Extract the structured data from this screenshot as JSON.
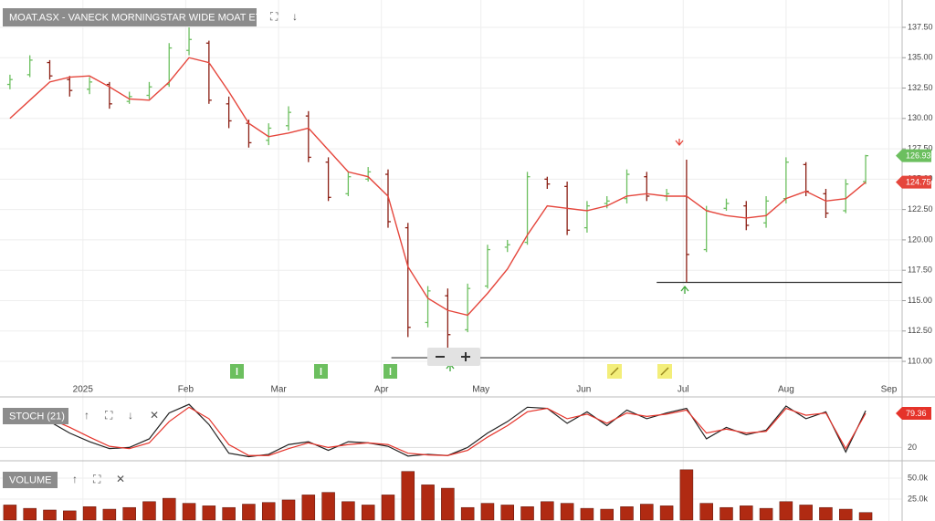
{
  "chart_data": [
    {
      "type": "ohlc",
      "title": "MOAT.ASX - VANECK MORNINGSTAR WIDE MOAT ETF",
      "x": [
        -22,
        -16,
        -10,
        -4,
        2,
        8,
        14,
        20,
        26,
        32,
        38,
        44,
        50,
        56,
        62,
        68,
        74,
        80,
        86,
        92,
        98,
        104,
        110,
        116,
        122,
        128,
        134,
        140,
        146,
        152,
        158,
        164,
        170,
        176,
        182,
        188,
        194,
        200,
        206,
        212,
        218,
        224,
        230,
        236
      ],
      "xlim": [
        -25,
        247
      ],
      "xticks": [
        {
          "value": 0,
          "label": "2025"
        },
        {
          "value": 31,
          "label": "Feb"
        },
        {
          "value": 59,
          "label": "Mar"
        },
        {
          "value": 90,
          "label": "Apr"
        },
        {
          "value": 120,
          "label": "May"
        },
        {
          "value": 151,
          "label": "Jun"
        },
        {
          "value": 181,
          "label": "Jul"
        },
        {
          "value": 212,
          "label": "Aug"
        },
        {
          "value": 243,
          "label": "Sep"
        }
      ],
      "open": [
        132.8,
        133.6,
        134.6,
        133.2,
        132.4,
        132.8,
        131.4,
        131.9,
        132.8,
        135.6,
        136.2,
        131.2,
        129.6,
        128.2,
        129.4,
        130.2,
        126.4,
        123.8,
        125.0,
        125.4,
        121.0,
        113.2,
        115.4,
        112.6,
        116.2,
        119.4,
        119.8,
        125.0,
        124.4,
        121.0,
        123.0,
        123.4,
        125.2,
        123.6,
        123.6,
        119.2,
        122.6,
        122.8,
        121.4,
        123.4,
        126.2,
        123.8,
        122.4,
        124.8
      ],
      "high": [
        133.6,
        135.2,
        134.8,
        133.5,
        133.4,
        133.0,
        132.2,
        133.0,
        136.2,
        137.5,
        136.4,
        131.8,
        129.9,
        129.6,
        131.0,
        130.6,
        126.8,
        125.6,
        126.0,
        125.8,
        121.4,
        116.2,
        116.0,
        116.4,
        119.6,
        120.0,
        125.6,
        125.2,
        124.8,
        123.2,
        123.6,
        125.8,
        125.6,
        124.2,
        126.6,
        122.8,
        123.4,
        123.2,
        123.6,
        126.8,
        126.4,
        124.2,
        125.0,
        127.0
      ],
      "low": [
        132.4,
        133.4,
        133.2,
        131.8,
        132.0,
        130.8,
        131.2,
        131.6,
        132.6,
        135.2,
        131.2,
        129.2,
        127.6,
        127.8,
        129.0,
        126.4,
        123.2,
        123.6,
        124.8,
        121.0,
        112.0,
        112.8,
        111.0,
        112.4,
        116.0,
        119.0,
        119.6,
        124.2,
        120.4,
        120.6,
        122.6,
        123.0,
        123.2,
        123.2,
        116.5,
        119.0,
        122.4,
        120.8,
        121.0,
        123.0,
        123.6,
        121.8,
        122.2,
        124.6
      ],
      "close": [
        133.2,
        134.8,
        133.5,
        132.3,
        133.0,
        131.2,
        131.8,
        132.6,
        135.8,
        136.5,
        131.5,
        129.8,
        128.0,
        129.2,
        130.5,
        126.8,
        123.5,
        125.2,
        125.6,
        121.5,
        112.8,
        115.8,
        112.2,
        116.0,
        119.2,
        119.6,
        125.2,
        124.6,
        120.8,
        122.8,
        123.2,
        125.4,
        123.6,
        123.8,
        118.8,
        122.4,
        123.0,
        121.2,
        123.2,
        126.4,
        124.0,
        122.2,
        124.6,
        126.93
      ],
      "up_color": "#6cbf5f",
      "down_color": "#8b1f14",
      "moving_average": {
        "color": "#e5463c",
        "values": [
          130.0,
          131.5,
          133.0,
          133.4,
          133.5,
          132.6,
          131.6,
          131.5,
          133.0,
          135.0,
          134.6,
          132.2,
          129.6,
          128.5,
          128.8,
          129.2,
          127.4,
          125.6,
          125.2,
          123.6,
          117.8,
          115.2,
          114.2,
          113.8,
          115.6,
          117.6,
          120.4,
          122.8,
          122.6,
          122.4,
          122.8,
          123.6,
          123.8,
          123.6,
          123.6,
          122.4,
          122.0,
          121.8,
          122.0,
          123.4,
          124.0,
          123.2,
          123.4,
          124.75
        ]
      },
      "ylim": [
        108.2,
        139.75
      ],
      "yticks": [
        {
          "value": 110,
          "label": "110.00"
        },
        {
          "value": 112.5,
          "label": "112.50"
        },
        {
          "value": 115,
          "label": "115.00"
        },
        {
          "value": 117.5,
          "label": "117.50"
        },
        {
          "value": 120,
          "label": "120.00"
        },
        {
          "value": 122.5,
          "label": "122.50"
        },
        {
          "value": 125,
          "label": "125.00"
        },
        {
          "value": 127.5,
          "label": "127.50"
        },
        {
          "value": 130,
          "label": "130.00"
        },
        {
          "value": 132.5,
          "label": "132.50"
        },
        {
          "value": 135,
          "label": "135.00"
        },
        {
          "value": 137.5,
          "label": "137.50"
        }
      ],
      "levels": [
        {
          "value": 116.5,
          "from": 173
        },
        {
          "value": 110.3,
          "from": 93
        }
      ],
      "grid": true
    },
    {
      "type": "line",
      "title": "STOCH (21)",
      "series": [
        {
          "color": "#222222",
          "values": [
            70,
            75,
            65,
            45,
            30,
            18,
            20,
            35,
            80,
            95,
            60,
            10,
            4,
            8,
            25,
            30,
            15,
            30,
            28,
            22,
            5,
            8,
            6,
            20,
            45,
            65,
            90,
            88,
            62,
            82,
            58,
            85,
            70,
            80,
            88,
            35,
            55,
            42,
            50,
            92,
            70,
            82,
            12,
            84
          ]
        },
        {
          "color": "#e5332a",
          "values": [
            65,
            72,
            70,
            55,
            38,
            22,
            18,
            28,
            65,
            90,
            70,
            25,
            6,
            6,
            18,
            28,
            20,
            25,
            28,
            25,
            10,
            7,
            6,
            15,
            38,
            58,
            82,
            88,
            70,
            78,
            62,
            80,
            74,
            78,
            85,
            45,
            52,
            45,
            48,
            88,
            76,
            80,
            18,
            79.36
          ]
        }
      ],
      "ylim": [
        0,
        100
      ],
      "yticks": [
        20
      ]
    },
    {
      "type": "bar",
      "title": "VOLUME",
      "values": [
        18000,
        14000,
        12000,
        11000,
        16000,
        13000,
        15000,
        22000,
        26000,
        20000,
        17000,
        15000,
        19000,
        21000,
        24000,
        30000,
        33000,
        22000,
        18000,
        30000,
        58000,
        42000,
        38000,
        15000,
        20000,
        18000,
        16000,
        22000,
        20000,
        14000,
        13000,
        16000,
        19000,
        17000,
        60000,
        20000,
        15000,
        17000,
        14000,
        22000,
        18000,
        15000,
        13000,
        9000
      ],
      "color": "#b02a12",
      "ylim": [
        0,
        62000
      ],
      "yticks": [
        {
          "value": 25000,
          "label": "25.0k"
        },
        {
          "value": 50000,
          "label": "50.0k"
        }
      ]
    }
  ]
}
